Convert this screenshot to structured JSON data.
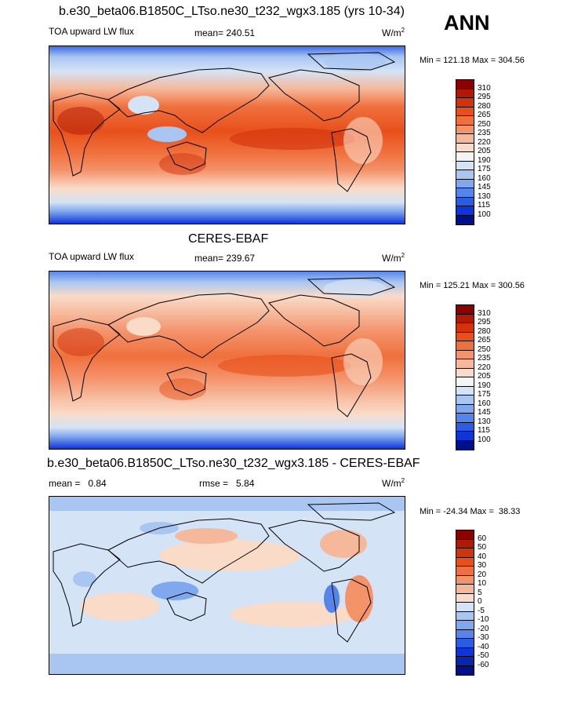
{
  "season": "ANN",
  "panels": [
    {
      "title": "b.e30_beta06.B1850C_LTso.ne30_t232_wgx3.185 (yrs 10-34)",
      "variable": "TOA upward LW flux",
      "mean_text": "mean= 240.51",
      "rmse_text": "",
      "units": "W/m",
      "units_sup": "2",
      "minmax": "Min = 121.18 Max = 304.56",
      "colorbar": {
        "labels": [
          "310",
          "295",
          "280",
          "265",
          "250",
          "235",
          "220",
          "205",
          "190",
          "175",
          "160",
          "145",
          "130",
          "115",
          "100"
        ],
        "colors": [
          "#8b0000",
          "#b01a05",
          "#d2330d",
          "#e8501b",
          "#f0703d",
          "#f4926a",
          "#f6b89a",
          "#fadbc8",
          "#f4f4f4",
          "#d4e3f6",
          "#a9c6f2",
          "#80a8ee",
          "#5585ea",
          "#2b5ce3",
          "#0e35d8",
          "#000f8c"
        ]
      }
    },
    {
      "title": "CERES-EBAF",
      "variable": "TOA upward LW flux",
      "mean_text": "mean= 239.67",
      "rmse_text": "",
      "units": "W/m",
      "units_sup": "2",
      "minmax": "Min = 125.21 Max = 300.56",
      "colorbar": {
        "labels": [
          "310",
          "295",
          "280",
          "265",
          "250",
          "235",
          "220",
          "205",
          "190",
          "175",
          "160",
          "145",
          "130",
          "115",
          "100"
        ],
        "colors": [
          "#8b0000",
          "#b01a05",
          "#d2330d",
          "#e8501b",
          "#f0703d",
          "#f4926a",
          "#f6b89a",
          "#fadbc8",
          "#f4f4f4",
          "#d4e3f6",
          "#a9c6f2",
          "#80a8ee",
          "#5585ea",
          "#2b5ce3",
          "#0e35d8",
          "#000f8c"
        ]
      }
    },
    {
      "title": "b.e30_beta06.B1850C_LTso.ne30_t232_wgx3.185 - CERES-EBAF",
      "variable": "",
      "mean_text": "mean =   0.84",
      "rmse_text": "rmse =   5.84",
      "units": "W/m",
      "units_sup": "2",
      "minmax": "Min = -24.34 Max =  38.33",
      "colorbar": {
        "labels": [
          "60",
          "50",
          "40",
          "30",
          "20",
          "10",
          "5",
          "0",
          "-5",
          "-10",
          "-20",
          "-30",
          "-40",
          "-50",
          "-60"
        ],
        "colors": [
          "#8b0000",
          "#b01a05",
          "#d2330d",
          "#e8501b",
          "#f0703d",
          "#f4926a",
          "#f6b89a",
          "#fadbc8",
          "#d4e3f6",
          "#a9c6f2",
          "#80a8ee",
          "#5585ea",
          "#2b5ce3",
          "#0e35d8",
          "#0a25b0",
          "#000f8c"
        ]
      }
    }
  ]
}
